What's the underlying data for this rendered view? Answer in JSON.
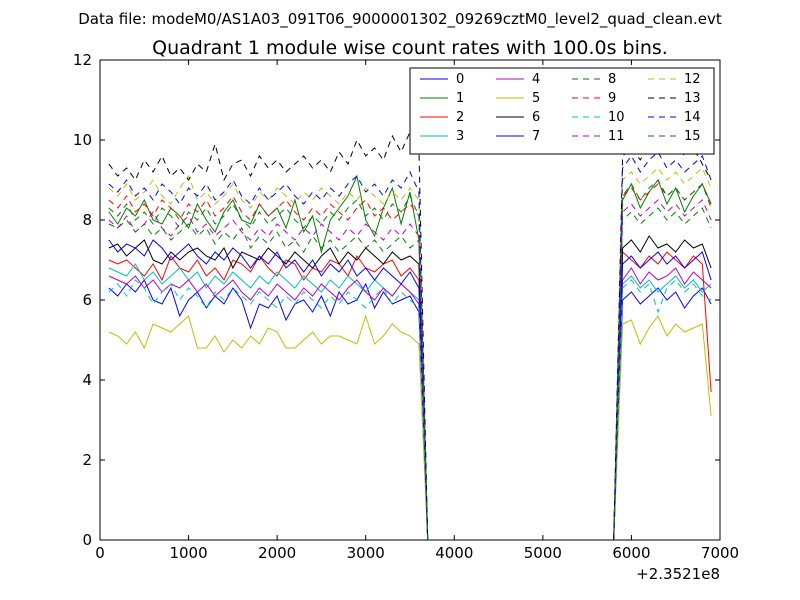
{
  "figure": {
    "suptitle": "Data file: modeM0/AS1A03_091T06_9000001302_09269cztM0_level2_quad_clean.evt"
  },
  "chart_data": {
    "type": "line",
    "title": "Quadrant 1 module wise count rates with 100.0s bins.",
    "xlabel": "",
    "ylabel": "",
    "x_offset_label": "+2.3521e8",
    "xlim": [
      0,
      7000
    ],
    "ylim": [
      0,
      12
    ],
    "xticks": [
      "0",
      "1000",
      "2000",
      "3000",
      "4000",
      "5000",
      "6000",
      "7000"
    ],
    "yticks": [
      "0",
      "2",
      "4",
      "6",
      "8",
      "10",
      "12"
    ],
    "grid": false,
    "legend_position": "top-right",
    "legend_columns": 4,
    "gap": {
      "from": 3700,
      "to": 5800
    },
    "x": [
      100,
      200,
      300,
      400,
      500,
      600,
      700,
      800,
      900,
      1000,
      1100,
      1200,
      1300,
      1400,
      1500,
      1600,
      1700,
      1800,
      1900,
      2000,
      2100,
      2200,
      2300,
      2400,
      2500,
      2600,
      2700,
      2800,
      2900,
      3000,
      3100,
      3200,
      3300,
      3400,
      3500,
      3600,
      3700,
      3800,
      3900,
      4000,
      4100,
      4200,
      4300,
      4400,
      4500,
      4600,
      4700,
      4800,
      4900,
      5000,
      5100,
      5200,
      5300,
      5400,
      5500,
      5600,
      5700,
      5800,
      5900,
      6000,
      6100,
      6200,
      6300,
      6400,
      6500,
      6600,
      6700,
      6800,
      6900
    ],
    "series": [
      {
        "name": "0",
        "color": "#0000ff",
        "dash": "solid",
        "values": [
          6.3,
          6.1,
          6.4,
          6.2,
          6.5,
          6.0,
          5.9,
          6.3,
          5.6,
          6.0,
          6.2,
          5.8,
          6.1,
          5.9,
          6.3,
          6.0,
          5.3,
          5.9,
          5.8,
          6.1,
          5.5,
          5.9,
          6.0,
          5.7,
          6.1,
          5.6,
          6.2,
          5.9,
          6.0,
          6.4,
          5.8,
          6.2,
          5.9,
          6.0,
          6.1,
          5.7,
          0,
          0,
          0,
          0,
          0,
          0,
          0,
          0,
          0,
          0,
          0,
          0,
          0,
          0,
          0,
          0,
          0,
          0,
          0,
          0,
          0,
          0,
          6.0,
          6.2,
          5.9,
          6.1,
          6.3,
          6.0,
          6.2,
          5.8,
          6.1,
          6.3,
          5.9
        ]
      },
      {
        "name": "1",
        "color": "#008000",
        "dash": "solid",
        "values": [
          8.2,
          7.9,
          8.3,
          8.1,
          8.5,
          8.0,
          7.9,
          8.3,
          8.1,
          7.8,
          8.4,
          8.0,
          7.7,
          8.2,
          8.5,
          8.0,
          7.9,
          8.4,
          8.1,
          8.3,
          7.8,
          8.5,
          7.7,
          8.1,
          7.2,
          8.0,
          8.3,
          8.6,
          9.1,
          8.0,
          7.6,
          8.3,
          8.8,
          7.9,
          8.7,
          7.5,
          0,
          0,
          0,
          0,
          0,
          0,
          0,
          0,
          0,
          0,
          0,
          0,
          0,
          0,
          0,
          0,
          0,
          0,
          0,
          0,
          0,
          0,
          8.5,
          8.9,
          8.3,
          8.7,
          9.0,
          8.4,
          8.8,
          8.2,
          8.6,
          8.9,
          8.4
        ]
      },
      {
        "name": "2",
        "color": "#ff0000",
        "dash": "solid",
        "values": [
          7.0,
          6.9,
          7.0,
          6.8,
          6.6,
          6.9,
          6.5,
          7.1,
          6.8,
          6.7,
          7.0,
          6.6,
          6.8,
          6.5,
          7.0,
          6.9,
          6.7,
          7.1,
          6.8,
          6.6,
          7.0,
          6.9,
          6.5,
          6.8,
          6.7,
          7.0,
          6.9,
          6.6,
          7.1,
          6.8,
          6.7,
          6.9,
          7.0,
          6.6,
          6.8,
          6.5,
          0,
          0,
          0,
          0,
          0,
          0,
          0,
          0,
          0,
          0,
          0,
          0,
          0,
          0,
          0,
          0,
          0,
          0,
          0,
          0,
          0,
          0,
          7.2,
          7.0,
          6.8,
          7.1,
          6.9,
          7.2,
          7.0,
          6.8,
          7.1,
          6.9,
          3.7
        ]
      },
      {
        "name": "3",
        "color": "#00bfbf",
        "dash": "solid",
        "values": [
          6.8,
          6.7,
          6.6,
          6.9,
          6.5,
          6.7,
          6.4,
          6.6,
          6.8,
          6.5,
          6.7,
          6.3,
          6.6,
          6.4,
          6.7,
          6.5,
          6.3,
          6.6,
          6.4,
          6.7,
          6.5,
          6.3,
          6.6,
          6.4,
          6.2,
          6.5,
          6.3,
          6.6,
          6.4,
          6.2,
          6.5,
          6.3,
          6.1,
          6.4,
          6.2,
          6.0,
          0,
          0,
          0,
          0,
          0,
          0,
          0,
          0,
          0,
          0,
          0,
          0,
          0,
          0,
          0,
          0,
          0,
          0,
          0,
          0,
          0,
          0,
          6.4,
          6.6,
          6.3,
          6.5,
          6.2,
          6.4,
          6.6,
          6.3,
          6.5,
          6.2,
          6.4
        ]
      },
      {
        "name": "4",
        "color": "#bf00bf",
        "dash": "solid",
        "values": [
          6.6,
          6.5,
          6.4,
          6.6,
          6.3,
          6.5,
          6.2,
          6.4,
          6.3,
          6.5,
          6.2,
          6.4,
          6.1,
          6.3,
          6.5,
          6.2,
          6.0,
          6.3,
          6.1,
          6.4,
          6.2,
          6.0,
          6.3,
          6.1,
          6.4,
          6.2,
          6.0,
          6.3,
          6.5,
          6.2,
          6.0,
          6.3,
          6.1,
          6.4,
          6.2,
          5.9,
          0,
          0,
          0,
          0,
          0,
          0,
          0,
          0,
          0,
          0,
          0,
          0,
          0,
          0,
          0,
          0,
          0,
          0,
          0,
          0,
          0,
          0,
          6.5,
          6.8,
          6.4,
          6.7,
          6.5,
          6.6,
          6.8,
          6.4,
          6.7,
          6.5,
          6.3
        ]
      },
      {
        "name": "5",
        "color": "#bfbf00",
        "dash": "solid",
        "values": [
          5.2,
          5.1,
          4.9,
          5.2,
          4.8,
          5.4,
          5.3,
          5.2,
          5.4,
          5.6,
          4.8,
          4.8,
          5.1,
          4.7,
          5.0,
          4.8,
          5.1,
          4.9,
          5.3,
          5.2,
          4.8,
          4.8,
          5.0,
          5.2,
          4.9,
          5.1,
          5.1,
          5.0,
          4.9,
          5.6,
          4.9,
          5.1,
          5.4,
          5.2,
          5.1,
          4.9,
          0,
          0,
          0,
          0,
          0,
          0,
          0,
          0,
          0,
          0,
          0,
          0,
          0,
          0,
          0,
          0,
          0,
          0,
          0,
          0,
          0,
          0,
          5.4,
          5.5,
          4.9,
          5.3,
          5.6,
          5.1,
          5.4,
          5.2,
          5.3,
          5.4,
          3.1
        ]
      },
      {
        "name": "6",
        "color": "#000000",
        "dash": "solid",
        "values": [
          7.3,
          7.4,
          7.1,
          7.3,
          7.5,
          7.0,
          6.9,
          7.2,
          7.0,
          7.2,
          7.3,
          7.1,
          7.0,
          7.3,
          6.8,
          7.2,
          7.1,
          7.0,
          7.3,
          7.1,
          6.9,
          7.2,
          7.0,
          6.8,
          7.1,
          7.3,
          6.9,
          7.2,
          7.0,
          7.3,
          7.1,
          6.9,
          7.2,
          7.0,
          7.1,
          6.9,
          0,
          0,
          0,
          0,
          0,
          0,
          0,
          0,
          0,
          0,
          0,
          0,
          0,
          0,
          0,
          0,
          0,
          0,
          0,
          0,
          0,
          0,
          7.3,
          7.5,
          7.2,
          7.6,
          7.3,
          7.4,
          7.2,
          7.5,
          7.3,
          7.4,
          6.8
        ]
      },
      {
        "name": "7",
        "color": "#0000ff",
        "dash": "solid",
        "values": [
          7.5,
          7.2,
          7.4,
          7.3,
          7.1,
          7.5,
          7.3,
          7.0,
          7.2,
          7.4,
          7.1,
          6.9,
          7.2,
          7.0,
          7.3,
          7.1,
          6.8,
          7.1,
          6.9,
          7.2,
          6.8,
          7.0,
          6.7,
          7.0,
          6.6,
          6.9,
          6.7,
          7.0,
          6.6,
          6.8,
          6.5,
          6.8,
          6.6,
          6.4,
          6.7,
          6.3,
          0,
          0,
          0,
          0,
          0,
          0,
          0,
          0,
          0,
          0,
          0,
          0,
          0,
          0,
          0,
          0,
          0,
          0,
          0,
          0,
          0,
          0,
          6.9,
          7.1,
          6.8,
          7.0,
          7.2,
          6.9,
          7.1,
          6.8,
          7.0,
          7.2,
          6.5
        ]
      },
      {
        "name": "8",
        "color": "#008000",
        "dash": "dashed",
        "values": [
          7.9,
          7.8,
          8.0,
          7.7,
          7.9,
          7.6,
          7.8,
          7.5,
          7.7,
          7.9,
          7.6,
          7.8,
          7.4,
          7.7,
          7.5,
          7.8,
          7.3,
          7.6,
          7.4,
          7.7,
          7.3,
          7.5,
          7.2,
          7.6,
          7.3,
          7.5,
          7.2,
          7.4,
          7.6,
          7.3,
          7.5,
          7.2,
          7.4,
          7.6,
          7.3,
          7.5,
          0,
          0,
          0,
          0,
          0,
          0,
          0,
          0,
          0,
          0,
          0,
          0,
          0,
          0,
          0,
          0,
          0,
          0,
          0,
          0,
          0,
          0,
          8.0,
          8.2,
          7.9,
          8.1,
          8.3,
          8.0,
          8.2,
          7.9,
          8.1,
          8.3,
          7.8
        ]
      },
      {
        "name": "9",
        "color": "#ff0000",
        "dash": "dashed",
        "values": [
          8.5,
          8.3,
          8.6,
          8.2,
          8.4,
          8.1,
          8.5,
          8.3,
          8.0,
          8.4,
          8.2,
          8.5,
          8.1,
          8.3,
          8.6,
          8.2,
          8.0,
          8.4,
          8.1,
          8.3,
          8.5,
          8.2,
          8.0,
          8.3,
          8.1,
          8.4,
          8.2,
          8.0,
          8.3,
          8.5,
          8.1,
          8.3,
          8.0,
          8.2,
          8.4,
          8.1,
          0,
          0,
          0,
          0,
          0,
          0,
          0,
          0,
          0,
          0,
          0,
          0,
          0,
          0,
          0,
          0,
          0,
          0,
          0,
          0,
          0,
          0,
          8.6,
          8.8,
          8.5,
          8.7,
          8.9,
          8.6,
          8.8,
          8.5,
          8.7,
          8.9,
          8.4
        ]
      },
      {
        "name": "10",
        "color": "#00bfbf",
        "dash": "dashed",
        "values": [
          6.2,
          6.4,
          6.1,
          6.5,
          6.3,
          5.9,
          6.2,
          6.4,
          6.0,
          6.3,
          6.1,
          5.8,
          6.2,
          6.0,
          6.3,
          6.1,
          5.9,
          6.2,
          6.0,
          5.8,
          6.1,
          5.9,
          6.2,
          6.0,
          5.8,
          6.1,
          5.9,
          6.2,
          6.0,
          5.8,
          6.1,
          6.3,
          5.9,
          6.2,
          6.0,
          5.8,
          0,
          0,
          0,
          0,
          0,
          0,
          0,
          0,
          0,
          0,
          0,
          0,
          0,
          0,
          0,
          0,
          0,
          0,
          0,
          0,
          0,
          0,
          6.3,
          6.5,
          6.2,
          6.4,
          5.7,
          6.3,
          6.5,
          6.2,
          6.4,
          6.1,
          6.0
        ]
      },
      {
        "name": "11",
        "color": "#bf00bf",
        "dash": "dashed",
        "values": [
          8.0,
          7.8,
          8.1,
          7.7,
          7.9,
          8.2,
          7.8,
          7.6,
          7.9,
          8.1,
          7.7,
          7.9,
          7.6,
          7.8,
          8.0,
          7.7,
          7.5,
          7.8,
          7.6,
          7.9,
          7.7,
          7.5,
          7.8,
          7.6,
          7.9,
          7.7,
          7.5,
          7.8,
          7.6,
          7.9,
          7.7,
          7.5,
          7.8,
          7.6,
          7.9,
          7.6,
          0,
          0,
          0,
          0,
          0,
          0,
          0,
          0,
          0,
          0,
          0,
          0,
          0,
          0,
          0,
          0,
          0,
          0,
          0,
          0,
          0,
          0,
          8.2,
          8.4,
          8.1,
          8.3,
          8.5,
          8.2,
          8.4,
          8.1,
          8.3,
          8.5,
          8.0
        ]
      },
      {
        "name": "12",
        "color": "#bfbf00",
        "dash": "dashed",
        "values": [
          8.8,
          8.6,
          8.9,
          8.5,
          8.7,
          9.0,
          8.6,
          8.4,
          8.8,
          9.1,
          8.5,
          8.7,
          8.4,
          8.6,
          8.9,
          8.5,
          8.3,
          8.7,
          8.5,
          8.8,
          8.6,
          8.4,
          8.7,
          8.5,
          8.8,
          8.6,
          8.4,
          8.7,
          8.5,
          8.8,
          8.6,
          8.4,
          8.7,
          8.5,
          8.8,
          8.5,
          0,
          0,
          0,
          0,
          0,
          0,
          0,
          0,
          0,
          0,
          0,
          0,
          0,
          0,
          0,
          0,
          0,
          0,
          0,
          0,
          0,
          0,
          9.0,
          9.2,
          8.9,
          9.1,
          9.3,
          9.0,
          9.2,
          8.9,
          9.1,
          9.3,
          8.8
        ]
      },
      {
        "name": "13",
        "color": "#000000",
        "dash": "dashed",
        "values": [
          9.4,
          9.1,
          9.3,
          9.0,
          9.5,
          9.2,
          9.6,
          9.1,
          9.3,
          9.0,
          9.4,
          9.2,
          9.9,
          9.0,
          9.4,
          9.5,
          9.1,
          9.6,
          9.3,
          9.5,
          9.2,
          9.4,
          9.6,
          9.3,
          9.5,
          9.2,
          9.7,
          9.4,
          10.0,
          9.6,
          9.8,
          9.5,
          10.1,
          9.7,
          10.2,
          9.8,
          0,
          0,
          0,
          0,
          0,
          0,
          0,
          0,
          0,
          0,
          0,
          0,
          0,
          0,
          0,
          0,
          0,
          0,
          0,
          0,
          0,
          0,
          9.6,
          9.8,
          9.5,
          9.9,
          10.0,
          9.7,
          9.9,
          9.6,
          9.8,
          9.4,
          9.0
        ]
      },
      {
        "name": "14",
        "color": "#0000ff",
        "dash": "dashed",
        "values": [
          8.9,
          8.7,
          9.0,
          8.6,
          8.8,
          8.5,
          8.9,
          8.7,
          8.4,
          8.8,
          8.6,
          8.9,
          8.5,
          8.7,
          9.0,
          8.6,
          8.4,
          8.8,
          8.5,
          8.7,
          8.9,
          8.6,
          8.4,
          8.7,
          8.5,
          8.8,
          8.6,
          8.9,
          9.1,
          8.7,
          8.9,
          8.6,
          9.0,
          8.8,
          9.2,
          8.7,
          0,
          0,
          0,
          0,
          0,
          0,
          0,
          0,
          0,
          0,
          0,
          0,
          0,
          0,
          0,
          0,
          0,
          0,
          0,
          0,
          0,
          0,
          9.3,
          9.6,
          9.2,
          9.5,
          9.7,
          9.3,
          9.5,
          9.2,
          9.4,
          9.6,
          9.0
        ]
      },
      {
        "name": "15",
        "color": "#008000",
        "dash": "dashed",
        "values": [
          8.3,
          8.1,
          8.4,
          8.0,
          8.2,
          7.9,
          8.3,
          8.1,
          7.8,
          8.2,
          8.0,
          8.3,
          7.9,
          8.1,
          8.4,
          8.0,
          7.8,
          8.2,
          7.9,
          8.1,
          8.3,
          8.0,
          7.8,
          8.1,
          7.9,
          8.2,
          8.0,
          8.3,
          8.5,
          8.1,
          8.3,
          8.0,
          8.4,
          8.2,
          8.6,
          8.1,
          0,
          0,
          0,
          0,
          0,
          0,
          0,
          0,
          0,
          0,
          0,
          0,
          0,
          0,
          0,
          0,
          0,
          0,
          0,
          0,
          0,
          0,
          8.6,
          8.9,
          8.5,
          8.8,
          9.0,
          8.6,
          8.8,
          8.5,
          8.7,
          8.9,
          8.3
        ]
      }
    ]
  }
}
